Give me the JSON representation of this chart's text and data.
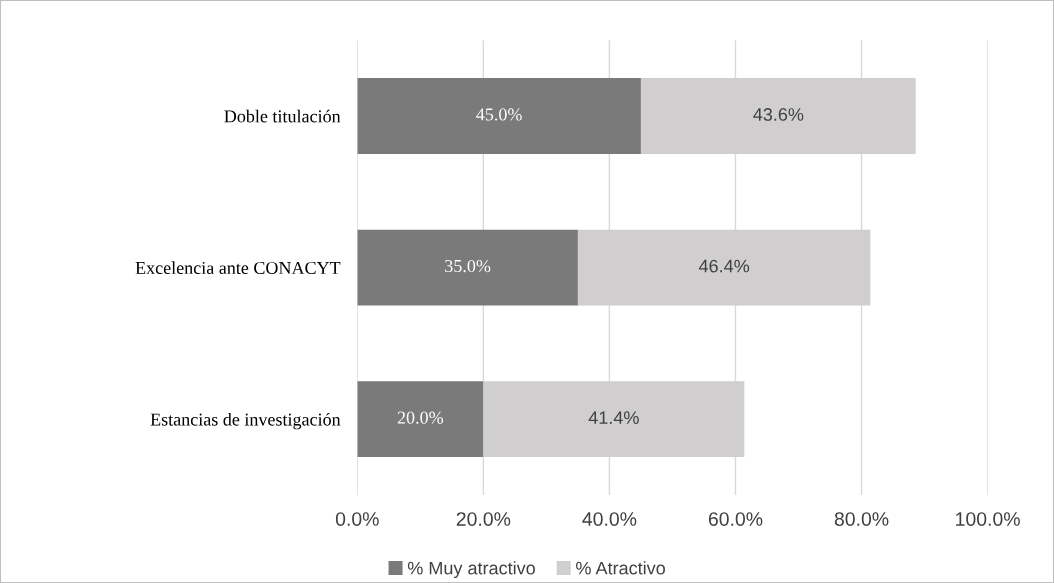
{
  "chart_data": {
    "type": "bar",
    "orientation": "horizontal",
    "stacked": true,
    "categories": [
      "Doble titulación",
      "Excelencia ante CONACYT",
      "Estancias de investigación"
    ],
    "series": [
      {
        "name": "% Muy atractivo",
        "color": "#7a7a7a",
        "values": [
          45.0,
          35.0,
          20.0
        ],
        "value_labels": [
          "45.0%",
          "35.0%",
          "20.0%"
        ]
      },
      {
        "name": "% Atractivo",
        "color": "#d0cece",
        "values": [
          43.6,
          46.4,
          41.4
        ],
        "value_labels": [
          "43.6%",
          "46.4%",
          "41.4%"
        ]
      }
    ],
    "xlim": [
      0,
      100
    ],
    "xticks": [
      {
        "value": 0,
        "label": "0.0%"
      },
      {
        "value": 20,
        "label": "20.0%"
      },
      {
        "value": 40,
        "label": "40.0%"
      },
      {
        "value": 60,
        "label": "60.0%"
      },
      {
        "value": 80,
        "label": "80.0%"
      },
      {
        "value": 100,
        "label": "100.0%"
      }
    ],
    "grid": "x",
    "legend": "bottom"
  }
}
